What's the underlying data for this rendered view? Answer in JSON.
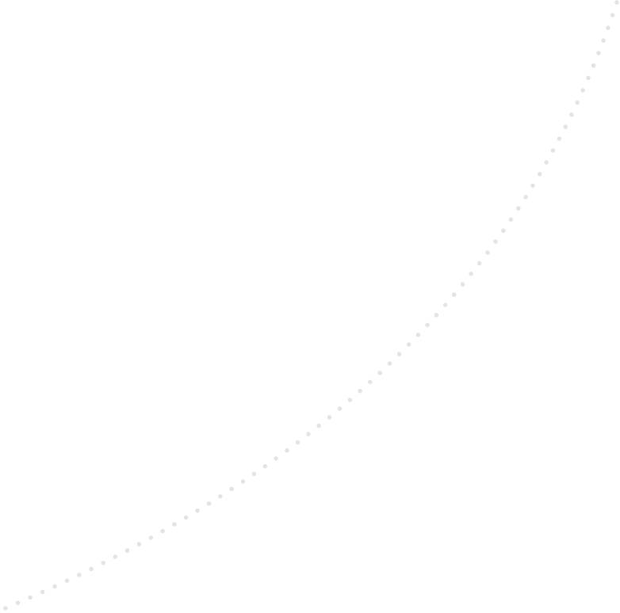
{
  "decoration": {
    "type": "dotted-arc",
    "dot_color": "#e3e3e3",
    "background_color": "#ffffff"
  }
}
